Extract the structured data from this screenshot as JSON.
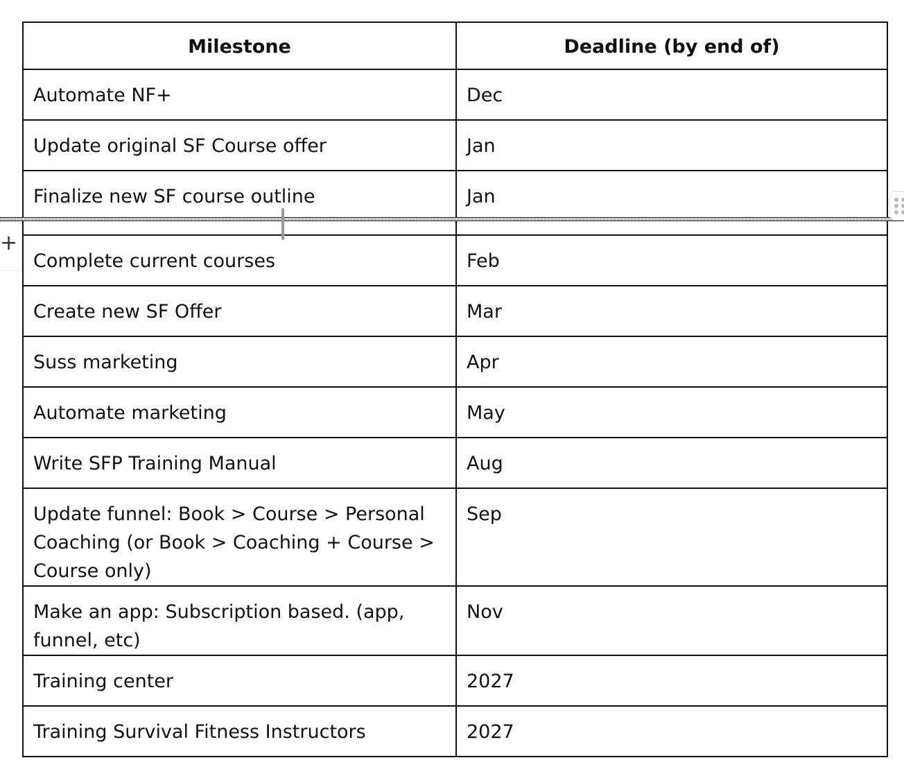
{
  "table": {
    "headers": [
      "Milestone",
      "Deadline (by end of)"
    ],
    "rows": [
      {
        "milestone": "Automate NF+",
        "deadline": "Dec"
      },
      {
        "milestone": "Update original SF Course offer",
        "deadline": "Jan"
      },
      {
        "milestone": "Finalize new SF course outline",
        "deadline": "Jan"
      },
      {
        "milestone": "Complete current courses",
        "deadline": "Feb"
      },
      {
        "milestone": "Create new SF Offer",
        "deadline": "Mar"
      },
      {
        "milestone": "Suss marketing",
        "deadline": "Apr"
      },
      {
        "milestone": "Automate marketing",
        "deadline": "May"
      },
      {
        "milestone": "Write SFP Training Manual",
        "deadline": "Aug"
      },
      {
        "milestone": "Update funnel: Book > Course > Personal Coaching (or Book > Coaching + Course > Course only)",
        "deadline": "Sep"
      },
      {
        "milestone": "Make an app: Subscription based. (app, funnel, etc)",
        "deadline": "Nov"
      },
      {
        "milestone": "Training center",
        "deadline": "2027"
      },
      {
        "milestone": "Training Survival Fitness Instructors",
        "deadline": "2027"
      }
    ]
  },
  "controls": {
    "add_row_symbol": "+",
    "icons": [
      "plus-icon",
      "drag-handle-icon"
    ]
  }
}
